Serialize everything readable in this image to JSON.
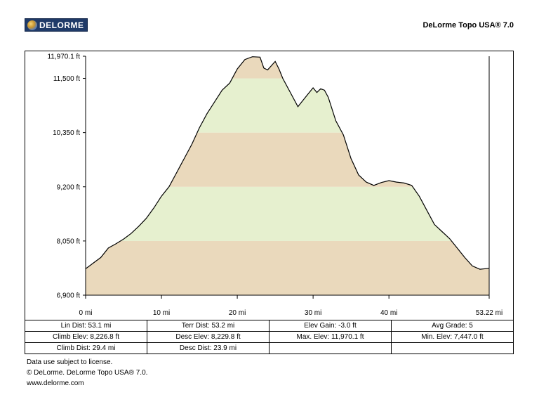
{
  "header": {
    "logo_text": "DELORME",
    "product_title": "DeLorme Topo USA® 7.0"
  },
  "chart_data": {
    "type": "area",
    "title": "",
    "xlabel": "",
    "ylabel": "",
    "xlim": [
      0,
      53.22
    ],
    "ylim": [
      6900,
      11970.1
    ],
    "x_ticks": [
      0,
      10,
      20,
      30,
      40,
      53.22
    ],
    "x_tick_labels": [
      "0 mi",
      "10 mi",
      "20 mi",
      "30 mi",
      "40 mi",
      "53.22 mi"
    ],
    "y_ticks": [
      6900,
      8050,
      9200,
      10350,
      11500,
      11970.1
    ],
    "y_tick_labels": [
      "6,900 ft",
      "8,050 ft",
      "9,200 ft",
      "10,350 ft",
      "11,500 ft",
      "11,970.1 ft"
    ],
    "band_colors": [
      "#ead9bc",
      "#e6f0cf"
    ],
    "grid": false,
    "series": [
      {
        "x": [
          0,
          1,
          2,
          3,
          4,
          5,
          6,
          7,
          8,
          9,
          10,
          11,
          12,
          13,
          14,
          15,
          16,
          17,
          18,
          19,
          20,
          21,
          22,
          23,
          23.5,
          24,
          25,
          25.5,
          26,
          27,
          28,
          29,
          30,
          30.5,
          31,
          31.5,
          32,
          33,
          34,
          35,
          36,
          37,
          38,
          39,
          40,
          41,
          42,
          43,
          44,
          45,
          46,
          47,
          48,
          49,
          50,
          51,
          52,
          53.22
        ],
        "y": [
          7460,
          7580,
          7700,
          7900,
          7990,
          8090,
          8210,
          8360,
          8530,
          8750,
          9000,
          9200,
          9500,
          9800,
          10100,
          10450,
          10750,
          11000,
          11250,
          11400,
          11700,
          11900,
          11960,
          11950,
          11720,
          11680,
          11860,
          11700,
          11500,
          11200,
          10900,
          11100,
          11300,
          11200,
          11280,
          11250,
          11100,
          10600,
          10300,
          9800,
          9450,
          9300,
          9230,
          9290,
          9330,
          9300,
          9280,
          9230,
          9000,
          8700,
          8400,
          8250,
          8100,
          7900,
          7700,
          7520,
          7450,
          7470
        ]
      }
    ]
  },
  "stats": {
    "rows": [
      [
        "Lin Dist:  53.1 mi",
        "Terr Dist:  53.2 mi",
        "Elev Gain:  -3.0 ft",
        "Avg Grade:  5"
      ],
      [
        "Climb Elev:  8,226.8 ft",
        "Desc Elev:  8,229.8 ft",
        "Max. Elev:  11,970.1 ft",
        "Min. Elev:  7,447.0 ft"
      ],
      [
        "Climb Dist:  29.4 mi",
        "Desc Dist:  23.9 mi",
        "",
        ""
      ]
    ]
  },
  "footer": {
    "line1": "Data use subject to license.",
    "line2": "© DeLorme. DeLorme Topo USA® 7.0.",
    "line3": "www.delorme.com"
  }
}
